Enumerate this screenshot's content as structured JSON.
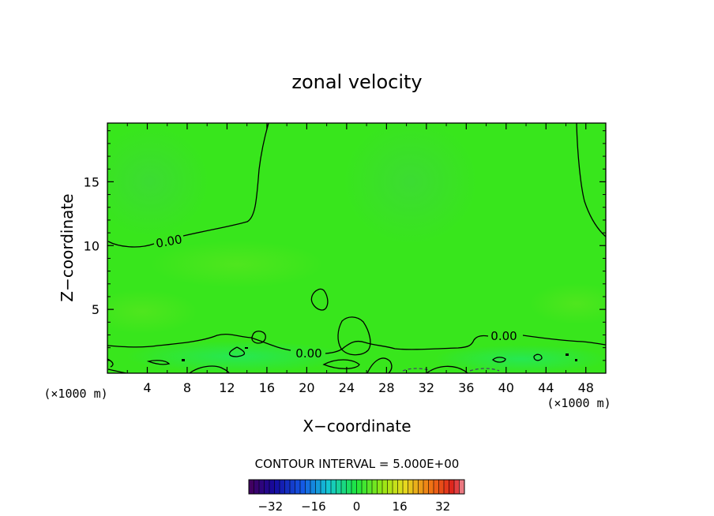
{
  "chart_data": {
    "type": "heatmap",
    "title": "zonal velocity",
    "xlabel": "X−coordinate",
    "ylabel": "Z−coordinate",
    "x_unit": "(×1000 m)",
    "y_unit": "(×1000 m)",
    "xlim": [
      0,
      50
    ],
    "ylim": [
      0,
      19.6
    ],
    "x_ticks": [
      4,
      8,
      12,
      16,
      20,
      24,
      28,
      32,
      36,
      40,
      44,
      48
    ],
    "y_ticks": [
      5,
      10,
      15
    ],
    "contour_interval_label": "CONTOUR INTERVAL = 5.000E+00",
    "contour_labels": [
      "0.00",
      "0.00",
      "0.00"
    ],
    "colorbar": {
      "range": [
        -40,
        40
      ],
      "tick_values": [
        -32,
        -16,
        0,
        16,
        32
      ],
      "tick_labels": [
        "−32",
        "−16",
        "0",
        "16",
        "32"
      ]
    }
  }
}
